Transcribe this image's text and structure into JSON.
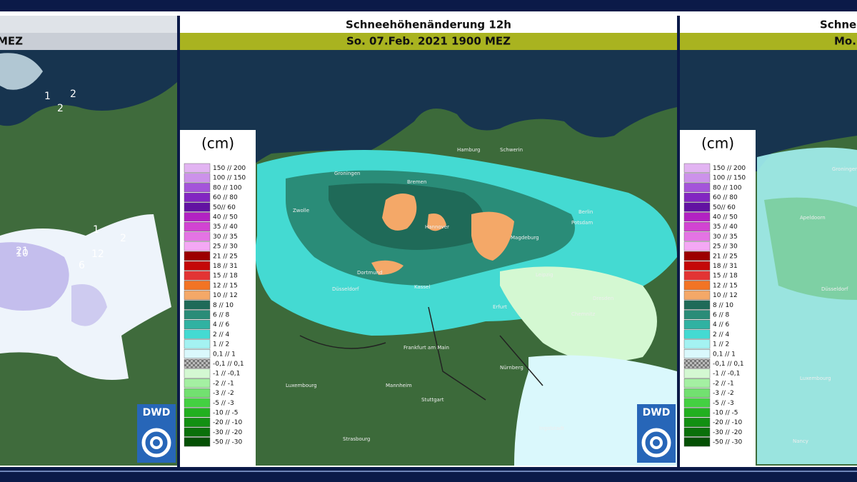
{
  "panels": [
    {
      "title": "MEZ",
      "places": [
        "1",
        "2",
        "2",
        "1",
        "2",
        "12",
        "21",
        "10",
        "6"
      ],
      "logo": "DWD"
    },
    {
      "title": "Schneehöhenänderung 12h",
      "subtitle": "So. 07.Feb. 2021 1900 MEZ",
      "logo": "DWD",
      "places": [
        "Groningen",
        "Bremen",
        "Hannover",
        "Berlin",
        "Magdeburg",
        "Dortmund",
        "Kassel",
        "Erfurt",
        "Dresden",
        "Leipzig",
        "Frankfurt am Main",
        "Nürnberg",
        "Stuttgart",
        "Zwolle",
        "Düsseldorf",
        "Hamburg",
        "Schwerin",
        "Potsdam",
        "Luxembourg",
        "Strasbourg",
        "Ingolstadt",
        "Chemnitz",
        "Mannheim"
      ]
    },
    {
      "title": "Schne",
      "subtitle": "Mo.",
      "places": [
        "Groningen",
        "Apeldoorn",
        "Düsseldorf",
        "Luxembourg",
        "Nancy"
      ]
    }
  ],
  "legend": {
    "unit": "(cm)",
    "entries": [
      {
        "label": "150 // 200",
        "color": "#e2b4f2"
      },
      {
        "label": "100 // 150",
        "color": "#cc92ea"
      },
      {
        "label": "80 // 100",
        "color": "#a454da"
      },
      {
        "label": "60 // 80",
        "color": "#8226c2"
      },
      {
        "label": "50// 60",
        "color": "#6212a2"
      },
      {
        "label": "40 // 50",
        "color": "#b222c2"
      },
      {
        "label": "35 // 40",
        "color": "#d244d2"
      },
      {
        "label": "30 // 35",
        "color": "#e474e4"
      },
      {
        "label": "25 // 30",
        "color": "#f4a8f4"
      },
      {
        "label": "21 // 25",
        "color": "#9c0000"
      },
      {
        "label": "18 // 31",
        "color": "#c40808"
      },
      {
        "label": "15 // 18",
        "color": "#e23434"
      },
      {
        "label": "12 // 15",
        "color": "#f27424"
      },
      {
        "label": "10 // 12",
        "color": "#f4a868"
      },
      {
        "label": "8 // 10",
        "color": "#1f6a58"
      },
      {
        "label": "6 // 8",
        "color": "#2a8c78"
      },
      {
        "label": "4 // 6",
        "color": "#30b2a2"
      },
      {
        "label": "2 // 4",
        "color": "#44dad2"
      },
      {
        "label": "1 // 2",
        "color": "#a4f2f2"
      },
      {
        "label": "0,1 // 1",
        "color": "#daf8fc"
      },
      {
        "label": "-0,1 // 0,1",
        "color": "#9a9a9a"
      },
      {
        "label": "-1 // -0,1",
        "color": "#d4f8d2"
      },
      {
        "label": "-2 // -1",
        "color": "#a4f0a2"
      },
      {
        "label": "-3 // -2",
        "color": "#72e070"
      },
      {
        "label": "-5 // -3",
        "color": "#44d042"
      },
      {
        "label": "-10 // -5",
        "color": "#22b020"
      },
      {
        "label": "-20 // -10",
        "color": "#129012"
      },
      {
        "label": "-30 // -20",
        "color": "#0a700a"
      },
      {
        "label": "-50 // -30",
        "color": "#045004"
      }
    ]
  }
}
